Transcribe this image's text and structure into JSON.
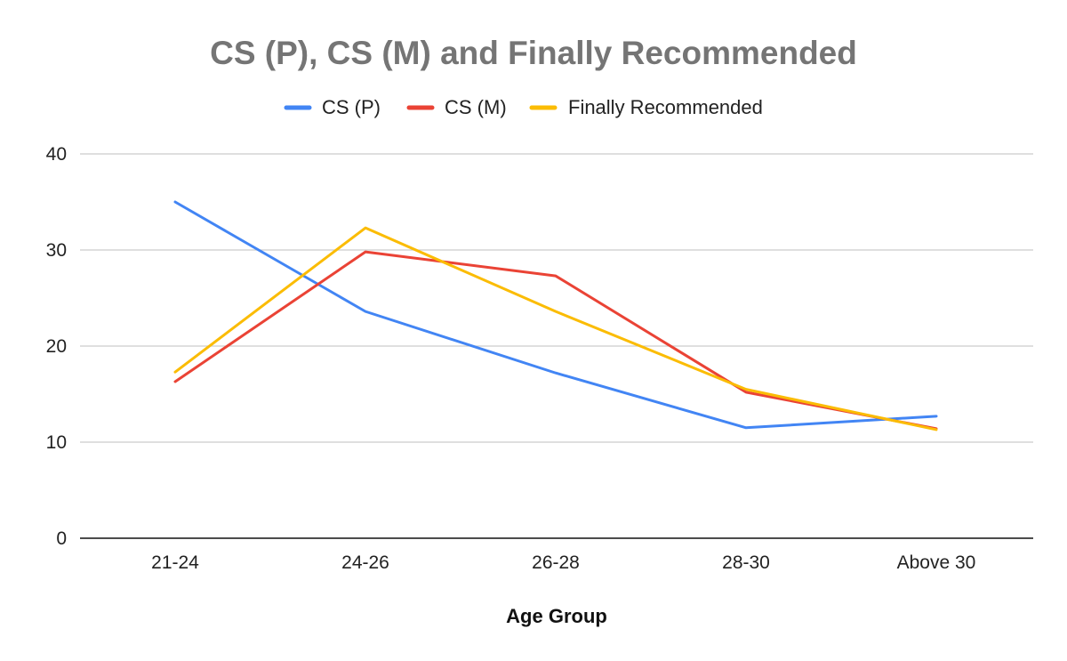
{
  "chart_data": {
    "type": "line",
    "title": "CS (P), CS (M) and Finally Recommended",
    "xlabel": "Age Group",
    "ylabel": "",
    "categories": [
      "21-24",
      "24-26",
      "26-28",
      "28-30",
      "Above 30"
    ],
    "ylim": [
      0,
      40
    ],
    "yticks": [
      0,
      10,
      20,
      30,
      40
    ],
    "grid": true,
    "legend_position": "top",
    "series": [
      {
        "name": "CS (P)",
        "color": "#4285F4",
        "values": [
          35.0,
          23.6,
          17.2,
          11.5,
          12.7
        ]
      },
      {
        "name": "CS (M)",
        "color": "#EA4335",
        "values": [
          16.3,
          29.8,
          27.3,
          15.2,
          11.4
        ]
      },
      {
        "name": "Finally Recommended",
        "color": "#FBBC04",
        "values": [
          17.3,
          32.3,
          23.6,
          15.5,
          11.3
        ]
      }
    ]
  }
}
